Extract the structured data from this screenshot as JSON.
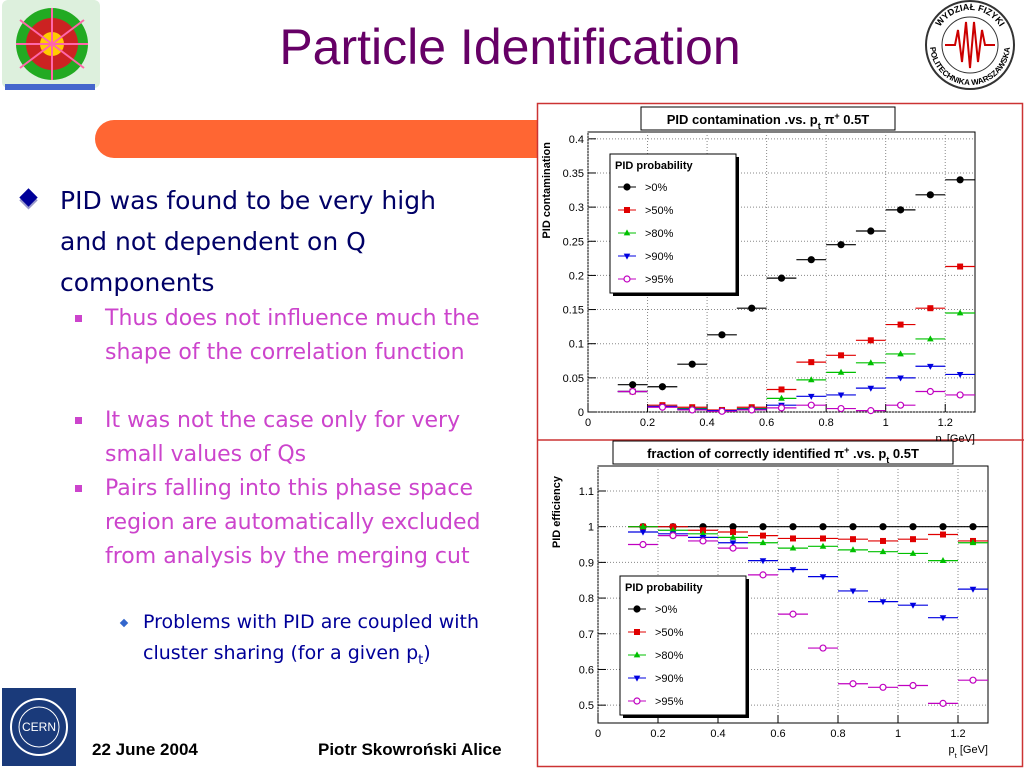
{
  "slide": {
    "title": "Particle Identification",
    "bullets": [
      "PID was found to be very high and not dependent on Q components",
      "Thus does not influence much the shape of the correlation function",
      "It was not the case only for very small values of Qs",
      "Pairs falling into this phase space region are automatically excluded from analysis by the merging cut",
      [
        "Problems with PID are coupled with cluster sharing (for a given p",
        "t",
        ")"
      ]
    ],
    "logo_left_text": "CERN",
    "logo_right_top": "WYDZIAŁ FIZYKI",
    "logo_right_bottom": "POLITECHNIKA WARSZAWSKA",
    "footer_date": "22 June 2004",
    "footer_author": "Piotr Skowroński  Alice"
  },
  "chart_data": [
    {
      "type": "scatter",
      "title": [
        {
          "text": "PID contamination .vs. p"
        },
        {
          "text": "t",
          "sub": true
        },
        {
          "text": " π"
        },
        {
          "text": "+",
          "sup": true
        },
        {
          "text": " 0.5T"
        }
      ],
      "ylabel": "PID contamination",
      "xlabel": [
        {
          "text": "p"
        },
        {
          "text": "t",
          "sub": true
        },
        {
          "text": " [GeV]"
        }
      ],
      "x": [
        0.15,
        0.25,
        0.35,
        0.45,
        0.55,
        0.65,
        0.75,
        0.85,
        0.95,
        1.05,
        1.15,
        1.25
      ],
      "xerr": 0.05,
      "xlim": [
        0,
        1.3
      ],
      "ylim": [
        0,
        0.41
      ],
      "xticks": [
        0,
        0.2,
        0.4,
        0.6,
        0.8,
        1,
        1.2
      ],
      "yticks": [
        0,
        0.05,
        0.1,
        0.15,
        0.2,
        0.25,
        0.3,
        0.35,
        0.4
      ],
      "grid": true,
      "legend": "upper left",
      "legend_title": "PID probability",
      "series": [
        {
          "name": ">0%",
          "color": "#000000",
          "marker": "circle",
          "values": [
            0.04,
            0.037,
            0.07,
            0.113,
            0.152,
            0.196,
            0.223,
            0.245,
            0.265,
            0.296,
            0.318,
            0.34
          ]
        },
        {
          "name": ">50%",
          "color": "#e00000",
          "marker": "square",
          "values": [
            0.03,
            0.01,
            0.007,
            0.003,
            0.007,
            0.033,
            0.073,
            0.083,
            0.105,
            0.128,
            0.152,
            0.213
          ]
        },
        {
          "name": ">80%",
          "color": "#00c000",
          "marker": "triangle-up",
          "values": [
            0.03,
            0.008,
            0.005,
            0.002,
            0.005,
            0.02,
            0.047,
            0.058,
            0.072,
            0.085,
            0.107,
            0.145
          ]
        },
        {
          "name": ">90%",
          "color": "#0000e0",
          "marker": "triangle-down",
          "values": [
            0.03,
            0.008,
            0.004,
            0.002,
            0.004,
            0.01,
            0.023,
            0.025,
            0.035,
            0.05,
            0.067,
            0.055
          ]
        },
        {
          "name": ">95%",
          "color": "#c000c0",
          "marker": "open-circle",
          "values": [
            0.03,
            0.007,
            0.003,
            0.001,
            0.003,
            0.006,
            0.01,
            0.005,
            0.002,
            0.01,
            0.03,
            0.025
          ]
        }
      ]
    },
    {
      "type": "scatter",
      "title": [
        {
          "text": "fraction of correctly identified π"
        },
        {
          "text": "+",
          "sup": true
        },
        {
          "text": " .vs. p"
        },
        {
          "text": "t",
          "sub": true
        },
        {
          "text": "  0.5T"
        }
      ],
      "ylabel": "PID efficiency",
      "xlabel": [
        {
          "text": "p"
        },
        {
          "text": "t",
          "sub": true
        },
        {
          "text": " [GeV]"
        }
      ],
      "x": [
        0.15,
        0.25,
        0.35,
        0.45,
        0.55,
        0.65,
        0.75,
        0.85,
        0.95,
        1.05,
        1.15,
        1.25
      ],
      "xerr": 0.05,
      "xlim": [
        0,
        1.3
      ],
      "ylim": [
        0.45,
        1.17
      ],
      "xticks": [
        0,
        0.2,
        0.4,
        0.6,
        0.8,
        1,
        1.2
      ],
      "yticks": [
        0.5,
        0.6,
        0.7,
        0.8,
        0.9,
        1,
        1.1
      ],
      "grid": true,
      "legend": "lower left",
      "legend_title": "PID probability",
      "series": [
        {
          "name": ">0%",
          "color": "#000000",
          "marker": "circle",
          "values": [
            1.0,
            1.0,
            1.0,
            1.0,
            1.0,
            1.0,
            1.0,
            1.0,
            1.0,
            1.0,
            1.0,
            1.0
          ]
        },
        {
          "name": ">50%",
          "color": "#e00000",
          "marker": "square",
          "values": [
            1.0,
            1.0,
            0.99,
            0.985,
            0.975,
            0.967,
            0.967,
            0.965,
            0.96,
            0.965,
            0.978,
            0.96
          ]
        },
        {
          "name": ">80%",
          "color": "#00c000",
          "marker": "triangle-up",
          "values": [
            1.0,
            0.99,
            0.98,
            0.97,
            0.955,
            0.94,
            0.945,
            0.935,
            0.93,
            0.925,
            0.905,
            0.955
          ]
        },
        {
          "name": ">90%",
          "color": "#0000e0",
          "marker": "triangle-down",
          "values": [
            0.985,
            0.98,
            0.97,
            0.955,
            0.905,
            0.88,
            0.86,
            0.82,
            0.79,
            0.78,
            0.745,
            0.825
          ]
        },
        {
          "name": ">95%",
          "color": "#c000c0",
          "marker": "open-circle",
          "values": [
            0.95,
            0.975,
            0.96,
            0.94,
            0.865,
            0.755,
            0.66,
            0.56,
            0.55,
            0.555,
            0.505,
            0.57
          ]
        }
      ]
    }
  ]
}
